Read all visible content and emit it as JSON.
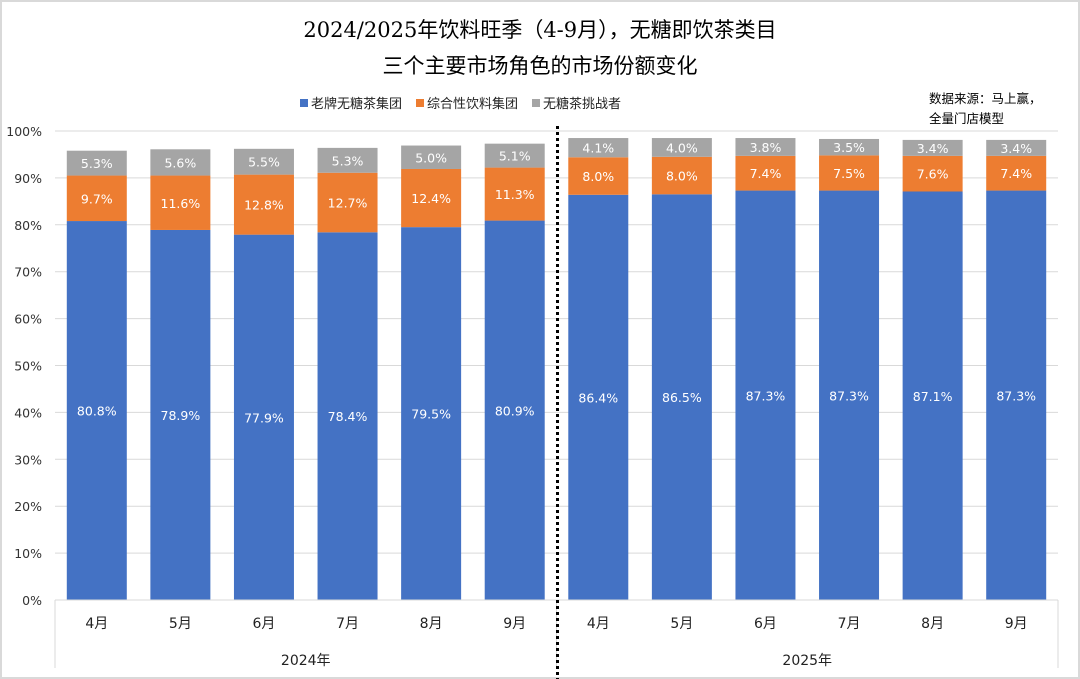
{
  "chart_data": {
    "type": "bar",
    "stacked": true,
    "title": "2024/2025年饮料旺季（4-9月），无糖即饮茶类目",
    "subtitle": "三个主要市场角色的市场份额变化",
    "source": [
      "数据来源：马上赢，",
      "全量门店模型"
    ],
    "categories": [
      "4月",
      "5月",
      "6月",
      "7月",
      "8月",
      "9月",
      "4月",
      "5月",
      "6月",
      "7月",
      "8月",
      "9月"
    ],
    "groups": [
      {
        "label": "2024年",
        "count": 6
      },
      {
        "label": "2025年",
        "count": 6
      }
    ],
    "series": [
      {
        "name": "老牌无糖茶集团",
        "color": "#4472C4",
        "values": [
          80.8,
          78.9,
          77.9,
          78.4,
          79.5,
          80.9,
          86.4,
          86.5,
          87.3,
          87.3,
          87.1,
          87.3
        ]
      },
      {
        "name": "综合性饮料集团",
        "color": "#ED7D31",
        "values": [
          9.7,
          11.6,
          12.8,
          12.7,
          12.4,
          11.3,
          8.0,
          8.0,
          7.4,
          7.5,
          7.6,
          7.4
        ]
      },
      {
        "name": "无糖茶挑战者",
        "color": "#A5A5A5",
        "values": [
          5.3,
          5.6,
          5.5,
          5.3,
          5.0,
          5.1,
          4.1,
          4.0,
          3.8,
          3.5,
          3.4,
          3.4
        ]
      }
    ],
    "ylim": [
      0,
      100
    ],
    "yticks": [
      "0%",
      "10%",
      "20%",
      "30%",
      "40%",
      "50%",
      "60%",
      "70%",
      "80%",
      "90%",
      "100%"
    ],
    "grid": true,
    "legend": "top",
    "divider": "dotted line between 2024 and 2025"
  }
}
